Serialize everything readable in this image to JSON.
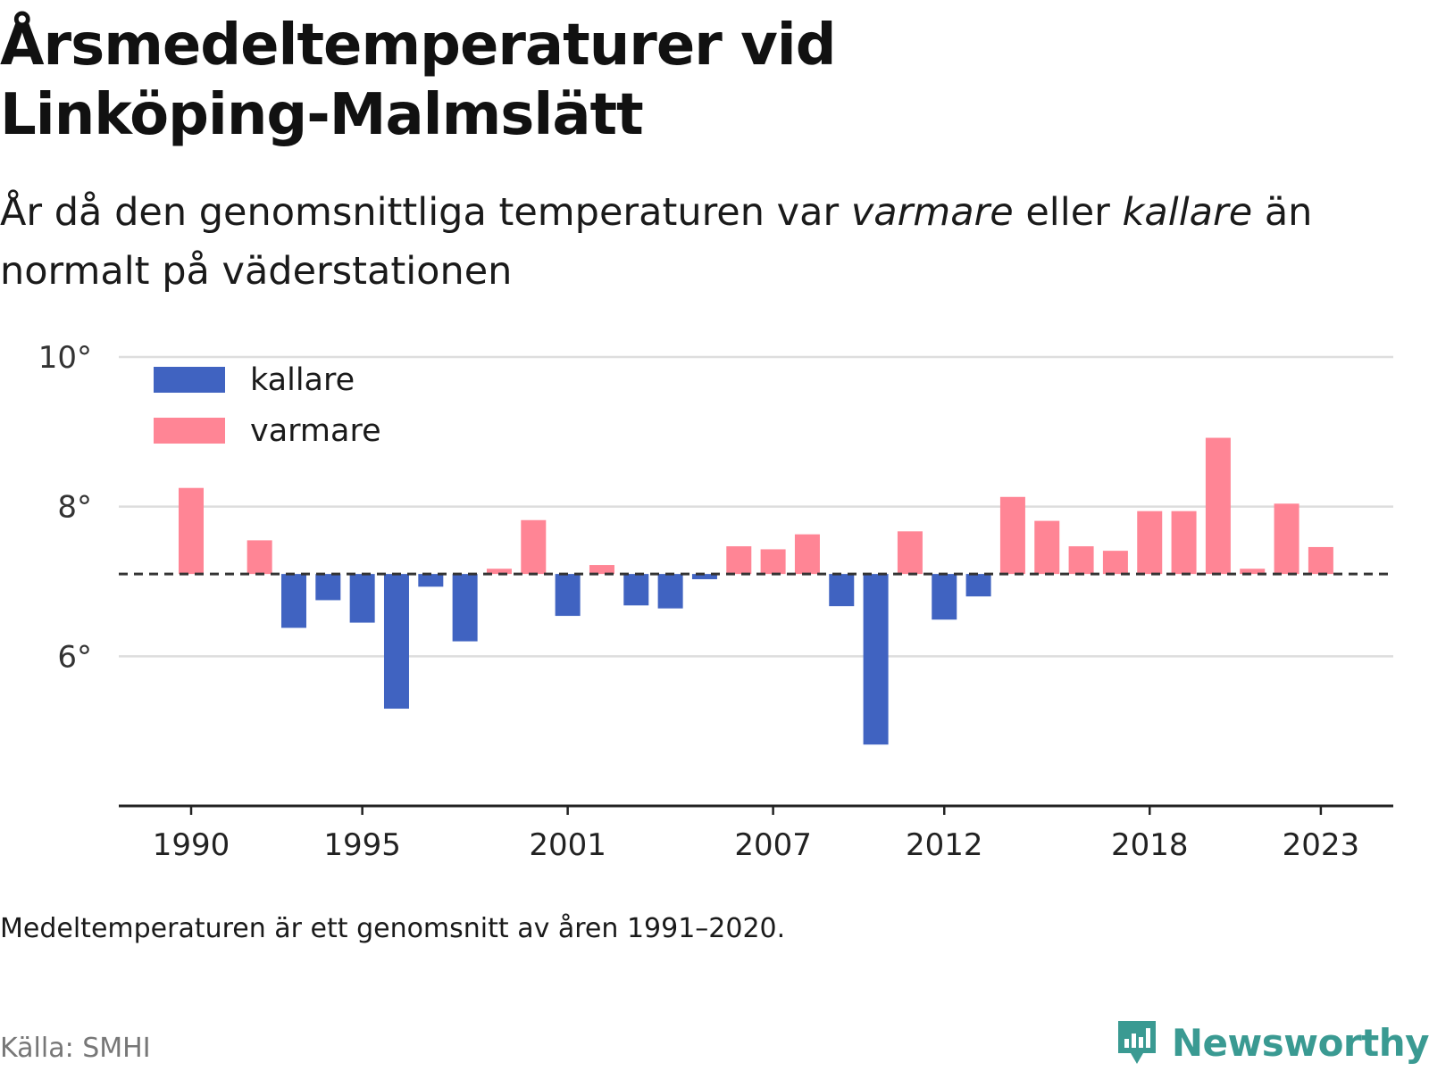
{
  "header": {
    "title": "Årsmedeltemperaturer vid Linköping-Malmslätt",
    "subtitle_part1": "År då den genomsnittliga temperaturen var ",
    "subtitle_warm": "varmare",
    "subtitle_part2": " eller ",
    "subtitle_cold": "kallare",
    "subtitle_part3": " än normalt på väderstationen"
  },
  "footer": {
    "note": "Medeltemperaturen är ett genomsnitt av åren 1991–2020.",
    "source": "Källa: SMHI",
    "brand": "Newsworthy",
    "brand_icon": "newsworthy-logo-icon"
  },
  "colors": {
    "warm": "#ff8595",
    "cold": "#4063c1",
    "grid": "#dddddd",
    "axis": "#222222",
    "baseline": "#333333",
    "brand": "#3a9a92"
  },
  "chart_data": {
    "type": "bar",
    "baseline": 7.1,
    "ylim": [
      4.0,
      10.0
    ],
    "yticks": [
      6,
      8,
      10
    ],
    "ytick_labels": [
      "6°",
      "8°",
      "10°"
    ],
    "xticks": [
      1990,
      1995,
      2001,
      2007,
      2012,
      2018,
      2023
    ],
    "xtick_labels": [
      "1990",
      "1995",
      "2001",
      "2007",
      "2012",
      "2018",
      "2023"
    ],
    "grid": true,
    "legend_position": "top-left",
    "series": [
      {
        "name": "kallare",
        "color": "#4063c1"
      },
      {
        "name": "varmare",
        "color": "#ff8595"
      }
    ],
    "x": [
      1990,
      1991,
      1992,
      1993,
      1994,
      1995,
      1996,
      1997,
      1998,
      1999,
      2000,
      2001,
      2002,
      2003,
      2004,
      2005,
      2006,
      2007,
      2008,
      2009,
      2010,
      2011,
      2012,
      2013,
      2014,
      2015,
      2016,
      2017,
      2018,
      2019,
      2020,
      2021,
      2022,
      2023
    ],
    "values": [
      8.25,
      7.1,
      7.55,
      6.38,
      6.75,
      6.45,
      5.3,
      6.93,
      6.2,
      7.17,
      7.82,
      6.54,
      7.22,
      6.68,
      6.64,
      7.03,
      7.47,
      7.43,
      7.63,
      6.67,
      4.82,
      7.67,
      6.49,
      6.8,
      8.13,
      7.81,
      7.47,
      7.41,
      7.94,
      7.94,
      8.92,
      7.17,
      8.04,
      7.46
    ]
  }
}
